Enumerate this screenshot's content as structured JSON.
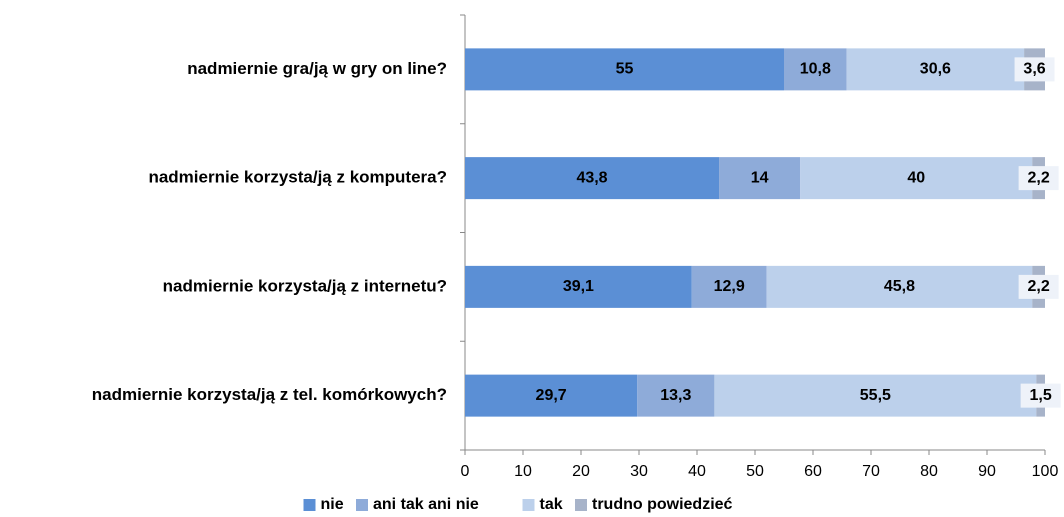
{
  "chart_data": {
    "type": "stacked_barh",
    "categories": [
      "nadmiernie gra/ją w gry on line?",
      "nadmiernie korzysta/ją z komputera?",
      "nadmiernie korzysta/ją z internetu?",
      "nadmiernie korzysta/ją z tel. komórkowych?"
    ],
    "series": [
      {
        "name": "nie",
        "color": "#5b8fd5",
        "values": [
          55,
          43.8,
          39.1,
          29.7
        ],
        "value_labels": [
          "55",
          "43,8",
          "39,1",
          "29,7"
        ]
      },
      {
        "name": "ani tak ani nie",
        "color": "#8eabd9",
        "values": [
          10.8,
          14,
          12.9,
          13.3
        ],
        "value_labels": [
          "10,8",
          "14",
          "12,9",
          "13,3"
        ]
      },
      {
        "name": "tak",
        "color": "#bcd0eb",
        "values": [
          30.6,
          40,
          45.8,
          55.5
        ],
        "value_labels": [
          "30,6",
          "40",
          "45,8",
          "55,5"
        ]
      },
      {
        "name": "trudno powiedzieć",
        "color": "#a7b3c9",
        "values": [
          3.6,
          2.2,
          2.2,
          1.5
        ],
        "value_labels": [
          "3,6",
          "2,2",
          "2,2",
          "1,5"
        ]
      }
    ],
    "xlim": [
      0,
      100
    ],
    "xticks": [
      0,
      10,
      20,
      30,
      40,
      50,
      60,
      70,
      80,
      90,
      100
    ],
    "legend": "bottom"
  }
}
